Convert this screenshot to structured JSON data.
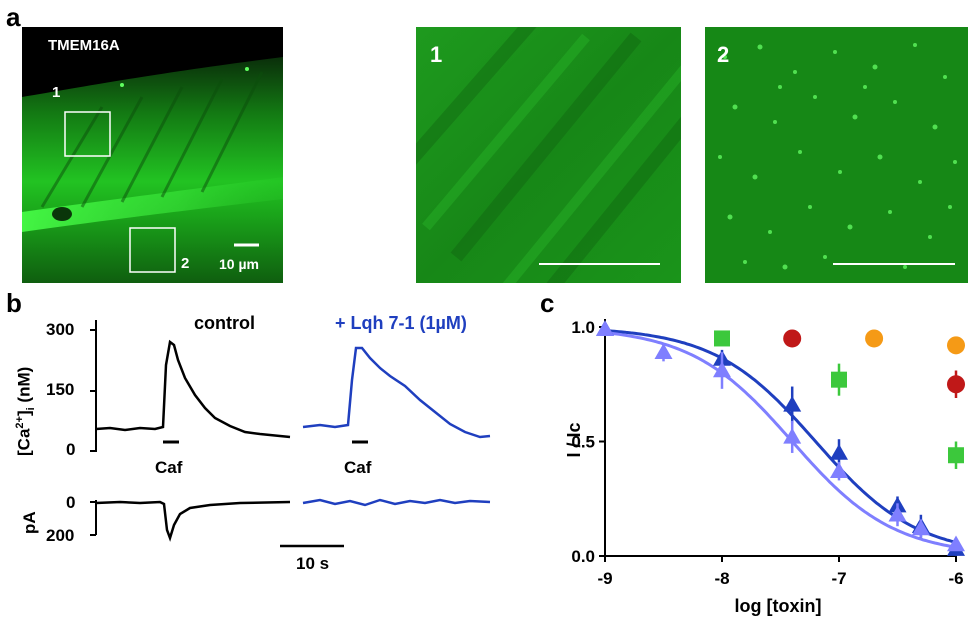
{
  "panel_a": {
    "letter": "a",
    "main_label": "TMEM16A",
    "roi_1": "1",
    "roi_2": "2",
    "scalebar_main": "10 µm",
    "inset_1_label": "1",
    "inset_2_label": "2",
    "colors": {
      "fluorescence": "#22c322",
      "background": "#000000"
    }
  },
  "panel_b": {
    "letter": "b",
    "ca_axis_label": "[Ca",
    "ca_axis_sup": "2+",
    "ca_axis_tail": "]",
    "ca_axis_sub": "i",
    "ca_axis_unit": "(nM)",
    "ca_ticks": [
      "300",
      "150",
      "0"
    ],
    "current_axis_label": "pA",
    "current_ticks": [
      "0",
      "200"
    ],
    "control_label": "control",
    "toxin_label": "+ Lqh 7-1 (1µM)",
    "caf_label_1": "Caf",
    "caf_label_2": "Caf",
    "time_scale": "10 s",
    "colors": {
      "control": "#000000",
      "toxin": "#1f3fbf"
    }
  },
  "panel_c": {
    "letter": "c",
    "chart_data": {
      "type": "scatter",
      "xlabel": "log [toxin]",
      "ylabel": "I / Ic",
      "xlim": [
        -9,
        -6
      ],
      "ylim": [
        0,
        1.0
      ],
      "x_ticks": [
        "-9",
        "-8",
        "-7",
        "-6"
      ],
      "y_ticks": [
        "0.0",
        "0.5",
        "1.0"
      ],
      "series": [
        {
          "marker": "triangle",
          "color": "#1f3fbf",
          "fit": true,
          "ic50_log": -7.2,
          "points": [
            {
              "x": -9,
              "y": 0.99,
              "err": 0.02
            },
            {
              "x": -8,
              "y": 0.86,
              "err": 0.04
            },
            {
              "x": -7.4,
              "y": 0.66,
              "err": 0.08
            },
            {
              "x": -7,
              "y": 0.45,
              "err": 0.06
            },
            {
              "x": -6.5,
              "y": 0.22,
              "err": 0.04
            },
            {
              "x": -6.3,
              "y": 0.13,
              "err": 0.05
            },
            {
              "x": -6,
              "y": 0.03,
              "err": 0.03
            }
          ]
        },
        {
          "marker": "triangle",
          "color": "#7f7fff",
          "fit": true,
          "ic50_log": -7.4,
          "points": [
            {
              "x": -9,
              "y": 0.99,
              "err": 0.02
            },
            {
              "x": -8.5,
              "y": 0.89,
              "err": 0.04
            },
            {
              "x": -8,
              "y": 0.81,
              "err": 0.08
            },
            {
              "x": -7.4,
              "y": 0.52,
              "err": 0.07
            },
            {
              "x": -7,
              "y": 0.37,
              "err": 0.04
            },
            {
              "x": -6.5,
              "y": 0.18,
              "err": 0.05
            },
            {
              "x": -6.3,
              "y": 0.12,
              "err": 0.04
            },
            {
              "x": -6,
              "y": 0.05,
              "err": 0.02
            }
          ]
        },
        {
          "marker": "square",
          "color": "#3cc83c",
          "fit": false,
          "points": [
            {
              "x": -8,
              "y": 0.95,
              "err": 0.0
            },
            {
              "x": -7,
              "y": 0.77,
              "err": 0.07
            },
            {
              "x": -6,
              "y": 0.44,
              "err": 0.06
            }
          ]
        },
        {
          "marker": "circle",
          "color": "#c01818",
          "fit": false,
          "points": [
            {
              "x": -7.4,
              "y": 0.95,
              "err": 0.0
            },
            {
              "x": -6,
              "y": 0.75,
              "err": 0.06
            }
          ]
        },
        {
          "marker": "circle",
          "color": "#f59a16",
          "fit": false,
          "points": [
            {
              "x": -6.7,
              "y": 0.95,
              "err": 0.0
            },
            {
              "x": -6,
              "y": 0.92,
              "err": 0.0
            }
          ]
        }
      ]
    }
  }
}
